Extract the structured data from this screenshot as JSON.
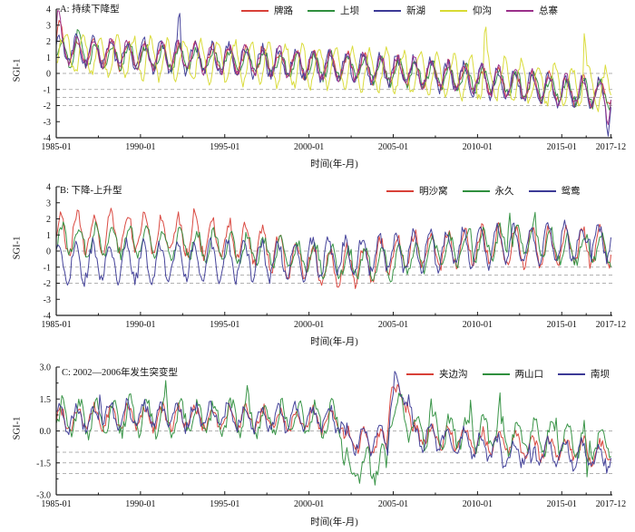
{
  "figure": {
    "ylabel": "SGI-1",
    "xlabel": "时间(年-月)"
  },
  "chart_data": [
    {
      "id": "A",
      "type": "line",
      "title": "A: 持续下降型",
      "ylabel": "SGI-1",
      "xlabel": "时间(年-月)",
      "x_start": 1985.0,
      "x_end": 2018.0,
      "x_major_ticks": [
        {
          "t": 1985.0,
          "label": "1985-01"
        },
        {
          "t": 1990.0,
          "label": "1990-01"
        },
        {
          "t": 1995.0,
          "label": "1995-01"
        },
        {
          "t": 2000.0,
          "label": "2000-01"
        },
        {
          "t": 2005.0,
          "label": "2005-01"
        },
        {
          "t": 2010.0,
          "label": "2010-01"
        },
        {
          "t": 2015.0,
          "label": "2015-01"
        },
        {
          "t": 2017.917,
          "label": "2017-12"
        }
      ],
      "x_minor_ticks": [
        1987.5,
        1992.5,
        1997.5,
        2002.5,
        2007.5,
        2012.5,
        2016.45
      ],
      "ylim": [
        -4,
        4
      ],
      "y_ticks": [
        {
          "v": 4,
          "label": "4"
        },
        {
          "v": 3,
          "label": "3"
        },
        {
          "v": 2,
          "label": "2"
        },
        {
          "v": 1,
          "label": "1"
        },
        {
          "v": 0,
          "label": "0"
        },
        {
          "v": -1,
          "label": "-1"
        },
        {
          "v": -2,
          "label": "-2"
        },
        {
          "v": -3,
          "label": "-3"
        },
        {
          "v": -4,
          "label": "-4"
        }
      ],
      "y_minor_ticks": [],
      "thresholds": [
        0,
        -1,
        -1.5,
        -2
      ],
      "threshold_color": "#999999",
      "legend_position": "top-right-inside",
      "sampling": "monthly 1985-01 to 2017-12, 396 points per series; values reconstructed as piecewise trend + annual seasonal cycle + noise + event spikes",
      "series": [
        {
          "name": "牌路",
          "color": "#d84038",
          "seed": 11,
          "seasonal_amp": 0.75,
          "phase": 0.02,
          "noise": 0.33,
          "trend": [
            [
              1985,
              1.45
            ],
            [
              1988,
              1.2
            ],
            [
              1993,
              1.0
            ],
            [
              1998,
              0.7
            ],
            [
              2003,
              0.35
            ],
            [
              2008,
              -0.1
            ],
            [
              2012,
              -0.65
            ],
            [
              2016,
              -1.05
            ],
            [
              2018,
              -1.2
            ]
          ],
          "spikes": [
            [
              1985.15,
              1.2,
              0.2
            ]
          ]
        },
        {
          "name": "上坝",
          "color": "#2f8f3e",
          "seed": 22,
          "seasonal_amp": 0.7,
          "phase": 0.08,
          "noise": 0.32,
          "trend": [
            [
              1985,
              1.35
            ],
            [
              1990,
              1.05
            ],
            [
              1995,
              0.8
            ],
            [
              2000,
              0.5
            ],
            [
              2005,
              0.15
            ],
            [
              2010,
              -0.4
            ],
            [
              2015,
              -1.0
            ],
            [
              2018,
              -1.45
            ]
          ],
          "spikes": [
            [
              1986.3,
              0.9,
              0.15
            ]
          ]
        },
        {
          "name": "新湖",
          "color": "#3c3a96",
          "seed": 33,
          "seasonal_amp": 0.85,
          "phase": -0.04,
          "noise": 0.35,
          "trend": [
            [
              1985,
              1.5
            ],
            [
              1990,
              1.1
            ],
            [
              1995,
              0.85
            ],
            [
              2000,
              0.55
            ],
            [
              2005,
              0.2
            ],
            [
              2010,
              -0.45
            ],
            [
              2015,
              -1.1
            ],
            [
              2018,
              -1.5
            ]
          ],
          "spikes": [
            [
              1992.3,
              2.1,
              0.1
            ],
            [
              2017.75,
              -1.5,
              0.12
            ]
          ]
        },
        {
          "name": "仰沟",
          "color": "#d8da33",
          "seed": 44,
          "seasonal_amp": 1.25,
          "phase": 0.35,
          "noise": 0.3,
          "trend": [
            [
              1985,
              1.25
            ],
            [
              1990,
              0.95
            ],
            [
              1995,
              0.7
            ],
            [
              2000,
              0.45
            ],
            [
              2005,
              0.1
            ],
            [
              2010,
              -0.3
            ],
            [
              2015,
              -0.75
            ],
            [
              2018,
              -1.05
            ]
          ],
          "spikes": [
            [
              1985.2,
              1.6,
              0.15
            ],
            [
              2010.45,
              2.9,
              0.09
            ],
            [
              2016.35,
              3.4,
              0.1
            ]
          ]
        },
        {
          "name": "总寨",
          "color": "#9a2f8a",
          "seed": 55,
          "seasonal_amp": 0.8,
          "phase": 0.0,
          "noise": 0.3,
          "trend": [
            [
              1985,
              1.6
            ],
            [
              1990,
              1.15
            ],
            [
              1995,
              0.9
            ],
            [
              2000,
              0.6
            ],
            [
              2005,
              0.25
            ],
            [
              2010,
              -0.35
            ],
            [
              2015,
              -1.0
            ],
            [
              2018,
              -1.35
            ]
          ],
          "spikes": [
            [
              1985.1,
              1.7,
              0.18
            ],
            [
              2017.7,
              -1.3,
              0.12
            ]
          ]
        }
      ]
    },
    {
      "id": "B",
      "type": "line",
      "title": "B: 下降-上升型",
      "ylabel": "SGI-1",
      "xlabel": "时间(年-月)",
      "x_start": 1985.0,
      "x_end": 2018.0,
      "x_major_ticks": [
        {
          "t": 1985.0,
          "label": "1985-01"
        },
        {
          "t": 1990.0,
          "label": "1990-01"
        },
        {
          "t": 1995.0,
          "label": "1995-01"
        },
        {
          "t": 2000.0,
          "label": "2000-01"
        },
        {
          "t": 2005.0,
          "label": "2005-01"
        },
        {
          "t": 2010.0,
          "label": "2010-01"
        },
        {
          "t": 2015.0,
          "label": "2015-01"
        },
        {
          "t": 2017.917,
          "label": "2017-12"
        }
      ],
      "x_minor_ticks": [
        1987.5,
        1992.5,
        1997.5,
        2002.5,
        2007.5,
        2012.5,
        2016.45
      ],
      "ylim": [
        -4,
        4
      ],
      "y_ticks": [
        {
          "v": 4,
          "label": "4"
        },
        {
          "v": 3,
          "label": "3"
        },
        {
          "v": 2,
          "label": "2"
        },
        {
          "v": 1,
          "label": "1"
        },
        {
          "v": 0,
          "label": "0"
        },
        {
          "v": -1,
          "label": "-1"
        },
        {
          "v": -2,
          "label": "-2"
        },
        {
          "v": -3,
          "label": "-3"
        },
        {
          "v": -4,
          "label": "-4"
        }
      ],
      "y_minor_ticks": [],
      "thresholds": [
        0,
        -1,
        -1.5,
        -2
      ],
      "threshold_color": "#999999",
      "legend_position": "top-right-inside",
      "sampling": "monthly 1985-01 to 2017-12, 396 points per series; values reconstructed as piecewise trend + annual seasonal cycle + noise + event spikes",
      "series": [
        {
          "name": "明沙窝",
          "color": "#d84038",
          "seed": 66,
          "seasonal_amp": 1.15,
          "phase": 0.0,
          "noise": 0.4,
          "trend": [
            [
              1985,
              1.1
            ],
            [
              1990,
              1.15
            ],
            [
              1994,
              0.9
            ],
            [
              1997,
              0.35
            ],
            [
              1999,
              -0.45
            ],
            [
              2001,
              -1.0
            ],
            [
              2003,
              -0.85
            ],
            [
              2005,
              -0.2
            ],
            [
              2008,
              0.2
            ],
            [
              2012,
              0.3
            ],
            [
              2018,
              0.3
            ]
          ],
          "spikes": [
            [
              1993.2,
              0.8,
              0.1
            ]
          ]
        },
        {
          "name": "永久",
          "color": "#2f8f3e",
          "seed": 77,
          "seasonal_amp": 0.9,
          "phase": 0.1,
          "noise": 0.38,
          "trend": [
            [
              1985,
              0.75
            ],
            [
              1990,
              0.6
            ],
            [
              1995,
              0.3
            ],
            [
              2000,
              -0.45
            ],
            [
              2004,
              -0.9
            ],
            [
              2008,
              0.0
            ],
            [
              2012,
              0.6
            ],
            [
              2015,
              0.2
            ],
            [
              2018,
              0.1
            ]
          ],
          "spikes": [
            [
              2009.6,
              1.4,
              0.08
            ],
            [
              2011.9,
              2.6,
              0.1
            ],
            [
              2013.4,
              1.5,
              0.08
            ]
          ]
        },
        {
          "name": "鸳鸯",
          "color": "#3c3a96",
          "seed": 88,
          "seasonal_amp": 1.15,
          "phase": -0.08,
          "noise": 0.4,
          "trend": [
            [
              1985,
              -0.75
            ],
            [
              1990,
              -0.7
            ],
            [
              1995,
              -0.6
            ],
            [
              2000,
              -0.55
            ],
            [
              2005,
              -0.1
            ],
            [
              2010,
              0.3
            ],
            [
              2014,
              0.5
            ],
            [
              2018,
              0.55
            ]
          ],
          "spikes": [
            [
              2016.6,
              1.6,
              0.1
            ]
          ]
        }
      ]
    },
    {
      "id": "C",
      "type": "line",
      "title": "C: 2002—2006年发生突变型",
      "ylabel": "SGI-1",
      "xlabel": "时间(年-月)",
      "x_start": 1985.0,
      "x_end": 2018.0,
      "x_major_ticks": [
        {
          "t": 1985.0,
          "label": "1985-01"
        },
        {
          "t": 1990.0,
          "label": "1990-01"
        },
        {
          "t": 1995.0,
          "label": "1995-01"
        },
        {
          "t": 2000.0,
          "label": "2000-01"
        },
        {
          "t": 2005.0,
          "label": "2005-01"
        },
        {
          "t": 2010.0,
          "label": "2010-01"
        },
        {
          "t": 2015.0,
          "label": "2015-01"
        },
        {
          "t": 2017.917,
          "label": "2017-12"
        }
      ],
      "x_minor_ticks": [
        1987.5,
        1992.5,
        1997.5,
        2002.5,
        2007.5,
        2012.5,
        2016.45
      ],
      "ylim": [
        -3,
        3
      ],
      "y_ticks": [
        {
          "v": 3,
          "label": "3.0"
        },
        {
          "v": 1.5,
          "label": "1.5"
        },
        {
          "v": 0,
          "label": "0.0"
        },
        {
          "v": -1.5,
          "label": "-1.5"
        },
        {
          "v": -3,
          "label": "-3.0"
        }
      ],
      "y_minor_ticks": [
        2.25,
        0.75,
        -0.75,
        -2.25
      ],
      "thresholds": [
        0,
        -1,
        -1.5,
        -2
      ],
      "threshold_color": "#999999",
      "legend_position": "top-right-inside",
      "sampling": "monthly 1985-01 to 2017-12, 396 points per series; step change down in 2002, spike recovery 2005, decline after 2006",
      "series": [
        {
          "name": "夹边沟",
          "color": "#d84038",
          "seed": 99,
          "seasonal_amp": 0.5,
          "phase": 0.02,
          "noise": 0.28,
          "trend": [
            [
              1985,
              0.55
            ],
            [
              1990,
              0.65
            ],
            [
              1996,
              0.55
            ],
            [
              2001.9,
              0.5
            ],
            [
              2002.1,
              -0.5
            ],
            [
              2004.6,
              -0.45
            ],
            [
              2004.8,
              1.7
            ],
            [
              2005.9,
              1.6
            ],
            [
              2006.1,
              -0.15
            ],
            [
              2009,
              -0.4
            ],
            [
              2013,
              -0.7
            ],
            [
              2018,
              -1.05
            ]
          ],
          "spikes": [
            [
              2004.95,
              0.7,
              0.1
            ]
          ]
        },
        {
          "name": "两山口",
          "color": "#2f8f3e",
          "seed": 111,
          "seasonal_amp": 0.75,
          "phase": 0.14,
          "noise": 0.35,
          "trend": [
            [
              1985,
              0.6
            ],
            [
              1990,
              0.7
            ],
            [
              1995,
              0.6
            ],
            [
              2001.9,
              0.5
            ],
            [
              2002.1,
              -1.6
            ],
            [
              2004.6,
              -1.65
            ],
            [
              2004.8,
              0.9
            ],
            [
              2005.8,
              0.85
            ],
            [
              2006.1,
              0.1
            ],
            [
              2010,
              -0.1
            ],
            [
              2014,
              -0.35
            ],
            [
              2018,
              -0.6
            ]
          ],
          "spikes": [
            [
              1991.5,
              1.2,
              0.08
            ],
            [
              1996.3,
              1.0,
              0.08
            ],
            [
              2002.5,
              -0.9,
              0.1
            ],
            [
              2007.2,
              1.2,
              0.08
            ],
            [
              2009.6,
              1.3,
              0.07
            ],
            [
              2011.3,
              1.4,
              0.07
            ],
            [
              2014.7,
              1.2,
              0.07
            ],
            [
              2016.5,
              -2.3,
              0.08
            ]
          ]
        },
        {
          "name": "南坝",
          "color": "#3c3a96",
          "seed": 122,
          "seasonal_amp": 0.55,
          "phase": -0.05,
          "noise": 0.3,
          "trend": [
            [
              1985,
              0.6
            ],
            [
              1990,
              0.75
            ],
            [
              1995,
              0.65
            ],
            [
              2001.9,
              0.55
            ],
            [
              2002.1,
              -0.45
            ],
            [
              2004.7,
              -0.4
            ],
            [
              2004.9,
              1.8
            ],
            [
              2005.9,
              1.7
            ],
            [
              2006.2,
              -0.2
            ],
            [
              2009,
              -0.5
            ],
            [
              2012,
              -1.0
            ],
            [
              2015,
              -1.1
            ],
            [
              2018,
              -1.2
            ]
          ],
          "spikes": [
            [
              1987.6,
              1.8,
              0.07
            ],
            [
              2005.15,
              0.6,
              0.1
            ],
            [
              2011.5,
              -0.9,
              0.1
            ],
            [
              2013.2,
              -0.9,
              0.08
            ]
          ]
        }
      ]
    }
  ]
}
